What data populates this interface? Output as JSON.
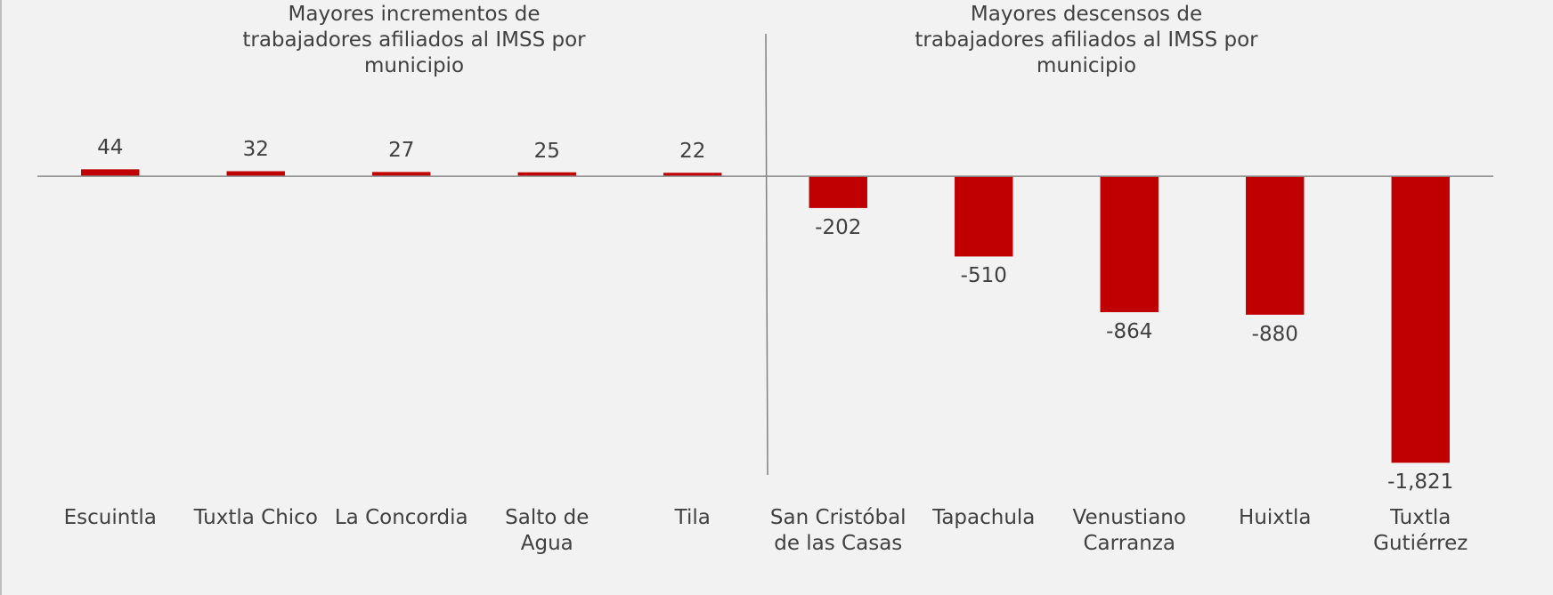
{
  "chart_data": {
    "type": "bar",
    "annotations": [
      "Mayores incrementos de trabajadores afiliados al IMSS por municipio",
      "Mayores descensos de trabajadores afiliados al IMSS por municipio"
    ],
    "categories": [
      "Escuintla",
      "Tuxtla Chico",
      "La Concordia",
      "Salto de Agua",
      "Tila",
      "San Cristóbal de las Casas",
      "Tapachula",
      "Venustiano Carranza",
      "Huixtla",
      "Tuxtla Gutiérrez"
    ],
    "values": [
      44,
      32,
      27,
      25,
      22,
      -202,
      -510,
      -864,
      -880,
      -1821
    ],
    "value_labels": [
      "44",
      "32",
      "27",
      "25",
      "22",
      "-202",
      "-510",
      "-864",
      "-880",
      "-1,821"
    ],
    "color": "#c00000",
    "ylim": [
      -2000,
      600
    ]
  }
}
